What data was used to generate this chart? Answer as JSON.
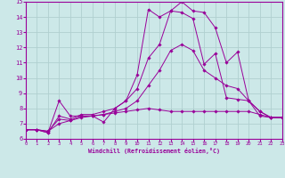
{
  "xlabel": "Windchill (Refroidissement éolien,°C)",
  "xlim": [
    0,
    23
  ],
  "ylim": [
    6,
    15
  ],
  "xticks": [
    0,
    1,
    2,
    3,
    4,
    5,
    6,
    7,
    8,
    9,
    10,
    11,
    12,
    13,
    14,
    15,
    16,
    17,
    18,
    19,
    20,
    21,
    22,
    23
  ],
  "yticks": [
    6,
    7,
    8,
    9,
    10,
    11,
    12,
    13,
    14,
    15
  ],
  "background_color": "#cce8e8",
  "grid_color": "#b0d0d0",
  "line_color": "#990099",
  "lines": [
    {
      "x": [
        0,
        1,
        2,
        3,
        4,
        5,
        6,
        7,
        8,
        9,
        10,
        11,
        12,
        13,
        14,
        15,
        16,
        17,
        18,
        19,
        20,
        21,
        22,
        23
      ],
      "y": [
        6.6,
        6.6,
        6.4,
        8.5,
        7.5,
        7.5,
        7.5,
        7.1,
        8.0,
        8.5,
        10.2,
        14.5,
        14.0,
        14.4,
        15.0,
        14.4,
        14.3,
        13.3,
        11.0,
        11.7,
        8.5,
        7.8,
        7.4,
        7.4
      ]
    },
    {
      "x": [
        0,
        1,
        2,
        3,
        4,
        5,
        6,
        7,
        8,
        9,
        10,
        11,
        12,
        13,
        14,
        15,
        16,
        17,
        18,
        19,
        20,
        21,
        22,
        23
      ],
      "y": [
        6.6,
        6.6,
        6.4,
        7.5,
        7.3,
        7.6,
        7.6,
        7.8,
        8.0,
        8.5,
        9.3,
        11.3,
        12.2,
        14.4,
        14.3,
        13.9,
        10.9,
        11.6,
        8.7,
        8.6,
        8.5,
        7.5,
        7.4,
        7.4
      ]
    },
    {
      "x": [
        0,
        1,
        2,
        3,
        4,
        5,
        6,
        7,
        8,
        9,
        10,
        11,
        12,
        13,
        14,
        15,
        16,
        17,
        18,
        19,
        20,
        21,
        22,
        23
      ],
      "y": [
        6.6,
        6.6,
        6.5,
        7.0,
        7.2,
        7.4,
        7.5,
        7.6,
        7.7,
        7.8,
        7.9,
        8.0,
        7.9,
        7.8,
        7.8,
        7.8,
        7.8,
        7.8,
        7.8,
        7.8,
        7.8,
        7.6,
        7.4,
        7.4
      ]
    },
    {
      "x": [
        0,
        1,
        2,
        3,
        4,
        5,
        6,
        7,
        8,
        9,
        10,
        11,
        12,
        13,
        14,
        15,
        16,
        17,
        18,
        19,
        20,
        21,
        22,
        23
      ],
      "y": [
        6.6,
        6.6,
        6.5,
        7.3,
        7.2,
        7.5,
        7.5,
        7.6,
        7.8,
        8.0,
        8.5,
        9.5,
        10.5,
        11.8,
        12.2,
        11.8,
        10.5,
        10.0,
        9.5,
        9.3,
        8.5,
        7.8,
        7.4,
        7.4
      ]
    }
  ]
}
